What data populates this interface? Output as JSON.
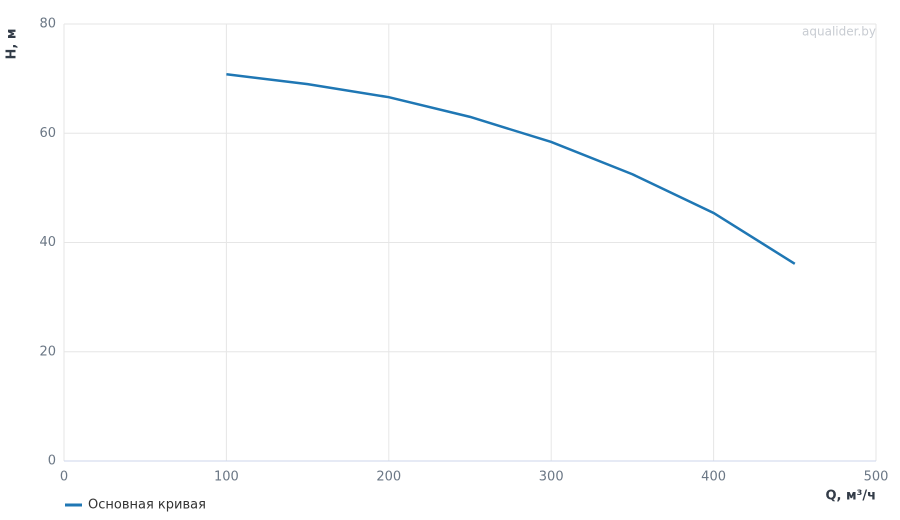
{
  "chart_data": {
    "type": "line",
    "x_label": "Q, м³/ч",
    "y_label": "H, м",
    "watermark": "aqualider.by",
    "x": [
      100,
      150,
      200,
      250,
      300,
      350,
      400,
      450
    ],
    "series": [
      {
        "name": "Основная кривая",
        "color": "#1f77b4",
        "values": [
          70.8,
          69.0,
          66.6,
          63.0,
          58.4,
          52.5,
          45.4,
          36.1
        ]
      }
    ],
    "xlim": [
      0,
      500
    ],
    "xticks": [
      0,
      100,
      200,
      300,
      400,
      500
    ],
    "ylim": [
      0,
      80
    ],
    "yticks": [
      0,
      20,
      40,
      60,
      80
    ],
    "grid": true
  }
}
